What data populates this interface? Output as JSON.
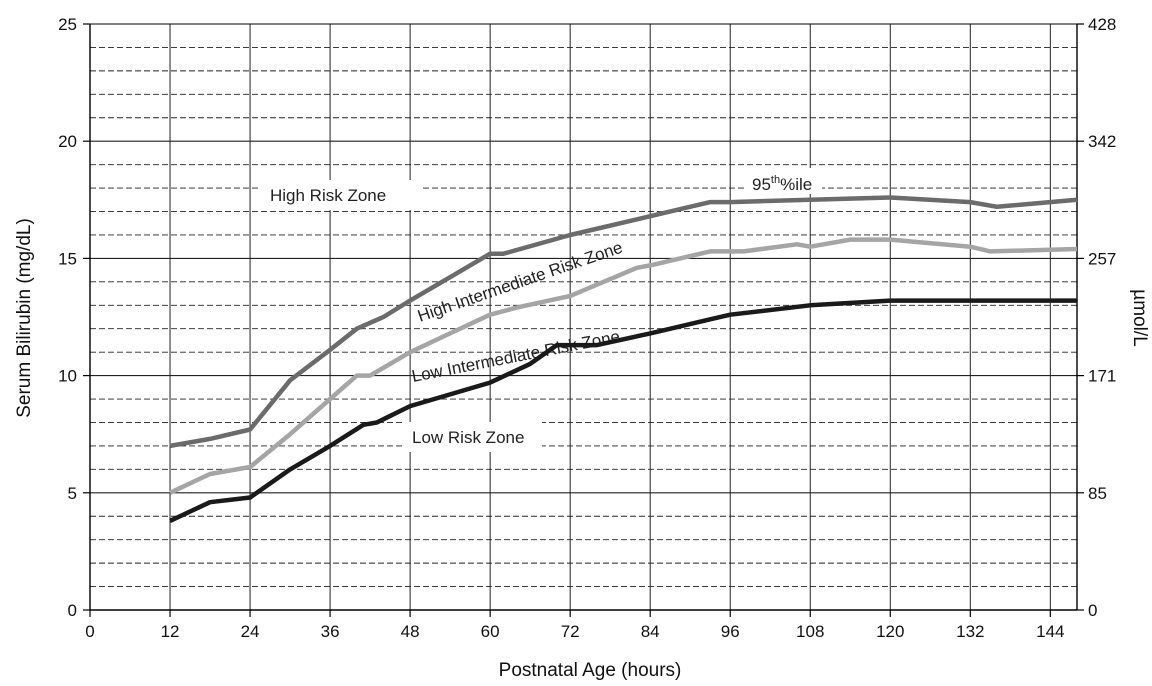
{
  "chart_data": {
    "type": "line",
    "xlabel": "Postnatal Age (hours)",
    "ylabel": "Serum Bilirubin (mg/dL)",
    "y2label": "µmol/L",
    "xlim": [
      0,
      148
    ],
    "ylim": [
      0,
      25
    ],
    "x_ticks": [
      "0",
      "12",
      "24",
      "36",
      "48",
      "60",
      "72",
      "84",
      "96",
      "108",
      "120",
      "132",
      "144"
    ],
    "y_ticks": [
      "0",
      "5",
      "10",
      "15",
      "20",
      "25"
    ],
    "y2_ticks": [
      {
        "value": 0,
        "label": "0"
      },
      {
        "value": 5,
        "label": "85"
      },
      {
        "value": 10,
        "label": "171"
      },
      {
        "value": 15,
        "label": "257"
      },
      {
        "value": 20,
        "label": "342"
      },
      {
        "value": 25,
        "label": "428"
      }
    ],
    "grid": {
      "major": "solid",
      "minor": "dashed"
    },
    "series": [
      {
        "name": "95th%ile",
        "color": "#6b6b6b",
        "points": [
          [
            12,
            7.0
          ],
          [
            18,
            7.3
          ],
          [
            24,
            7.7
          ],
          [
            30,
            9.8
          ],
          [
            36,
            11.1
          ],
          [
            40,
            12.0
          ],
          [
            44,
            12.5
          ],
          [
            48,
            13.2
          ],
          [
            54,
            14.2
          ],
          [
            60,
            15.2
          ],
          [
            62,
            15.2
          ],
          [
            72,
            16.0
          ],
          [
            84,
            16.8
          ],
          [
            93,
            17.4
          ],
          [
            96,
            17.4
          ],
          [
            108,
            17.5
          ],
          [
            120,
            17.6
          ],
          [
            132,
            17.4
          ],
          [
            136,
            17.2
          ],
          [
            148,
            17.5
          ]
        ]
      },
      {
        "name": "High Intermediate",
        "color": "#a5a5a5",
        "points": [
          [
            12,
            5.0
          ],
          [
            18,
            5.8
          ],
          [
            24,
            6.1
          ],
          [
            30,
            7.5
          ],
          [
            36,
            9.0
          ],
          [
            40,
            10.0
          ],
          [
            42,
            10.0
          ],
          [
            48,
            11.0
          ],
          [
            54,
            11.8
          ],
          [
            60,
            12.6
          ],
          [
            64,
            12.9
          ],
          [
            72,
            13.4
          ],
          [
            82,
            14.6
          ],
          [
            84,
            14.7
          ],
          [
            93,
            15.3
          ],
          [
            98,
            15.3
          ],
          [
            106,
            15.6
          ],
          [
            108,
            15.5
          ],
          [
            114,
            15.8
          ],
          [
            120,
            15.8
          ],
          [
            132,
            15.5
          ],
          [
            135,
            15.3
          ],
          [
            148,
            15.4
          ]
        ]
      },
      {
        "name": "Low Intermediate",
        "color": "#1a1a1a",
        "points": [
          [
            12,
            3.8
          ],
          [
            18,
            4.6
          ],
          [
            24,
            4.8
          ],
          [
            30,
            6.0
          ],
          [
            36,
            7.0
          ],
          [
            41,
            7.9
          ],
          [
            43,
            8.0
          ],
          [
            48,
            8.7
          ],
          [
            54,
            9.2
          ],
          [
            60,
            9.7
          ],
          [
            66,
            10.5
          ],
          [
            70,
            11.3
          ],
          [
            76,
            11.3
          ],
          [
            84,
            11.8
          ],
          [
            93,
            12.4
          ],
          [
            96,
            12.6
          ],
          [
            108,
            13.0
          ],
          [
            120,
            13.2
          ],
          [
            132,
            13.2
          ],
          [
            148,
            13.2
          ]
        ]
      }
    ],
    "annotations": {
      "high_risk": "High Risk Zone",
      "high_intermediate": "High Intermediate Risk Zone",
      "low_intermediate": "Low Intermediate Risk Zone",
      "low_risk": "Low Risk Zone",
      "percentile_95": "95th%ile",
      "percentile_95_prefix": "95",
      "percentile_95_sup": "th",
      "percentile_95_suffix": "%ile"
    }
  }
}
